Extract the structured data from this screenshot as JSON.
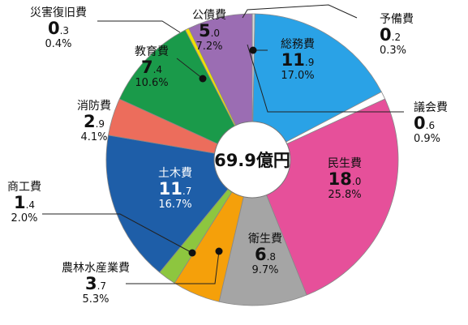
{
  "chart_data": {
    "type": "pie",
    "unit": "億円",
    "total_label": "69.9億円",
    "slices": [
      {
        "name": "予備費",
        "int": "0",
        "dec": ".2",
        "percent": "0.3%",
        "value": 0.2,
        "color": "#d9d9d9"
      },
      {
        "name": "総務費",
        "int": "11",
        "dec": ".9",
        "percent": "17.0%",
        "value": 11.9,
        "color": "#2aa2e6"
      },
      {
        "name": "議会費",
        "int": "0",
        "dec": ".6",
        "percent": "0.9%",
        "value": 0.6,
        "color": "#ffffff"
      },
      {
        "name": "民生費",
        "int": "18",
        "dec": ".0",
        "percent": "25.8%",
        "value": 18.0,
        "color": "#e6509a"
      },
      {
        "name": "衛生費",
        "int": "6",
        "dec": ".8",
        "percent": "9.7%",
        "value": 6.8,
        "color": "#a5a5a5"
      },
      {
        "name": "農林水産業費",
        "int": "3",
        "dec": ".7",
        "percent": "5.3%",
        "value": 3.7,
        "color": "#f5a00a"
      },
      {
        "name": "商工費",
        "int": "1",
        "dec": ".4",
        "percent": "2.0%",
        "value": 1.4,
        "color": "#8dc63f"
      },
      {
        "name": "土木費",
        "int": "11",
        "dec": ".7",
        "percent": "16.7%",
        "value": 11.7,
        "color": "#1e5ea8"
      },
      {
        "name": "消防費",
        "int": "2",
        "dec": ".9",
        "percent": "4.1%",
        "value": 2.9,
        "color": "#ec6d5c"
      },
      {
        "name": "教育費",
        "int": "7",
        "dec": ".4",
        "percent": "10.6%",
        "value": 7.4,
        "color": "#1a9a4a"
      },
      {
        "name": "災害復旧費",
        "int": "0",
        "dec": ".3",
        "percent": "0.4%",
        "value": 0.3,
        "color": "#f0e000"
      },
      {
        "name": "公債費",
        "int": "5",
        "dec": ".0",
        "percent": "7.2%",
        "value": 5.0,
        "color": "#9b6db3"
      }
    ]
  }
}
